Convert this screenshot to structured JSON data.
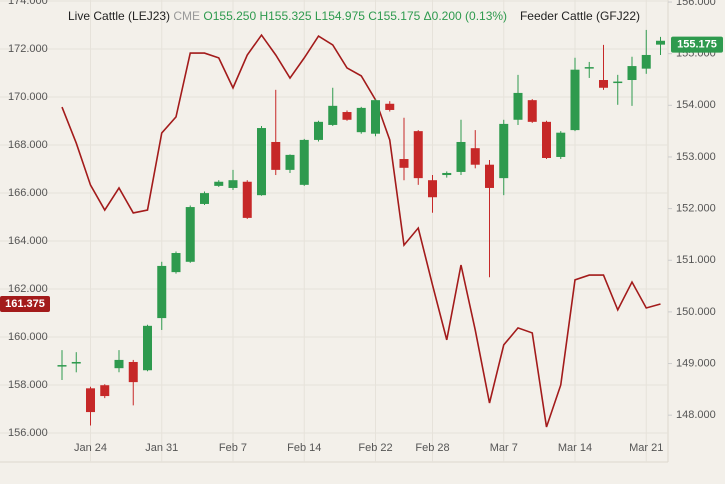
{
  "chart_data": {
    "type": "candlestick",
    "exchange": "CME",
    "ohlc_labels": [
      "O155.250",
      "H155.325",
      "L154.975",
      "C155.175",
      "Δ0.200 (0.13%)"
    ],
    "categories": [
      null,
      null,
      "Jan 24",
      null,
      null,
      null,
      null,
      "Jan 31",
      null,
      null,
      null,
      null,
      "Feb 7",
      null,
      null,
      null,
      null,
      "Feb 14",
      null,
      null,
      null,
      null,
      "Feb 22",
      null,
      null,
      null,
      "Feb 28",
      null,
      null,
      null,
      null,
      "Mar 7",
      null,
      null,
      null,
      null,
      "Mar 14",
      null,
      null,
      null,
      null,
      "Mar 21",
      null
    ],
    "series": [
      {
        "name": "Live Cattle (LEJ23)",
        "type": "candlestick",
        "axis": "y2",
        "open": [
          148.95,
          149.0,
          148.52,
          148.58,
          148.91,
          149.03,
          148.87,
          149.88,
          150.77,
          150.97,
          152.09,
          152.44,
          152.4,
          152.52,
          152.26,
          153.29,
          152.75,
          152.46,
          153.33,
          153.62,
          153.87,
          153.48,
          153.45,
          154.03,
          152.96,
          153.5,
          152.55,
          152.65,
          152.71,
          153.17,
          152.85,
          152.59,
          153.72,
          154.1,
          153.68,
          153.0,
          153.52,
          154.73,
          154.49,
          154.45,
          154.49,
          154.71,
          155.25
        ],
        "high": [
          149.26,
          149.22,
          148.55,
          148.6,
          149.26,
          149.07,
          149.75,
          150.97,
          151.17,
          152.06,
          152.33,
          152.55,
          152.75,
          152.55,
          153.6,
          154.3,
          153.05,
          153.35,
          153.7,
          154.34,
          153.9,
          153.97,
          154.12,
          154.08,
          153.76,
          153.52,
          152.65,
          152.72,
          153.72,
          153.52,
          152.94,
          153.72,
          154.59,
          154.12,
          153.7,
          153.5,
          154.92,
          154.84,
          155.17,
          154.59,
          154.94,
          155.46,
          155.325
        ],
        "low": [
          148.68,
          148.83,
          147.8,
          148.33,
          148.83,
          148.19,
          148.85,
          149.65,
          150.74,
          150.95,
          152.07,
          152.42,
          152.36,
          151.8,
          152.25,
          152.65,
          152.69,
          152.44,
          153.3,
          153.6,
          153.7,
          153.45,
          153.4,
          153.88,
          152.55,
          152.46,
          151.92,
          152.6,
          152.65,
          152.78,
          150.67,
          152.26,
          153.62,
          153.66,
          152.96,
          152.96,
          153.5,
          154.53,
          154.3,
          154.01,
          153.99,
          154.61,
          154.975
        ],
        "close": [
          148.97,
          149.03,
          148.06,
          148.37,
          149.07,
          148.64,
          149.73,
          150.89,
          151.14,
          152.03,
          152.3,
          152.52,
          152.55,
          151.82,
          153.56,
          152.75,
          153.04,
          153.33,
          153.68,
          153.99,
          153.72,
          153.95,
          154.1,
          153.91,
          152.79,
          152.59,
          152.22,
          152.69,
          153.29,
          152.85,
          152.4,
          153.64,
          154.24,
          153.68,
          152.98,
          153.47,
          154.69,
          154.74,
          154.34,
          154.46,
          154.76,
          154.975,
          155.175
        ],
        "colors": [
          "#2e9a4e",
          "#2e9a4e",
          "#c62828",
          "#c62828",
          "#2e9a4e",
          "#c62828",
          "#2e9a4e",
          "#2e9a4e",
          "#2e9a4e",
          "#2e9a4e",
          "#2e9a4e",
          "#2e9a4e",
          "#2e9a4e",
          "#c62828",
          "#2e9a4e",
          "#c62828",
          "#2e9a4e",
          "#2e9a4e",
          "#2e9a4e",
          "#2e9a4e",
          "#c62828",
          "#2e9a4e",
          "#2e9a4e",
          "#c62828",
          "#c62828",
          "#c62828",
          "#c62828",
          "#2e9a4e",
          "#2e9a4e",
          "#c62828",
          "#c62828",
          "#2e9a4e",
          "#2e9a4e",
          "#c62828",
          "#c62828",
          "#2e9a4e",
          "#2e9a4e",
          "#2e9a4e",
          "#c62828",
          "#2e9a4e",
          "#2e9a4e",
          "#2e9a4e",
          "#2e9a4e"
        ]
      },
      {
        "name": "Feeder Cattle (GFJ22)",
        "type": "line",
        "axis": "y",
        "color": "#a31b1b",
        "values": [
          169.58,
          168.08,
          166.33,
          165.29,
          166.21,
          165.17,
          165.29,
          168.5,
          169.17,
          171.83,
          171.83,
          171.63,
          170.38,
          171.75,
          172.58,
          171.75,
          170.79,
          171.63,
          172.54,
          172.17,
          171.21,
          170.88,
          169.88,
          168.21,
          163.83,
          164.54,
          162.17,
          159.88,
          163.0,
          160.29,
          157.25,
          159.67,
          160.38,
          160.17,
          156.25,
          158.0,
          162.38,
          162.58,
          162.58,
          161.13,
          162.29,
          161.21,
          161.375
        ]
      }
    ],
    "ylim": [
      155,
      174
    ],
    "yticks": [
      {
        "value": 156,
        "label": "156.000"
      },
      {
        "value": 158,
        "label": "158.000"
      },
      {
        "value": 160,
        "label": "160.000"
      },
      {
        "value": 162,
        "label": "162.000"
      },
      {
        "value": 164,
        "label": "164.000"
      },
      {
        "value": 166,
        "label": "166.000"
      },
      {
        "value": 168,
        "label": "168.000"
      },
      {
        "value": 170,
        "label": "170.000"
      },
      {
        "value": 172,
        "label": "172.000"
      },
      {
        "value": 174,
        "label": "174.000"
      }
    ],
    "y2lim": [
      147.19,
      156.02
    ],
    "y2ticks": [
      {
        "value": 148,
        "label": "148.000"
      },
      {
        "value": 149,
        "label": "149.000"
      },
      {
        "value": 150,
        "label": "150.000"
      },
      {
        "value": 151,
        "label": "151.000"
      },
      {
        "value": 152,
        "label": "152.000"
      },
      {
        "value": 153,
        "label": "153.000"
      },
      {
        "value": 154,
        "label": "154.000"
      },
      {
        "value": 155,
        "label": "155.000"
      },
      {
        "value": 156,
        "label": "156.000"
      }
    ],
    "grid": true
  }
}
